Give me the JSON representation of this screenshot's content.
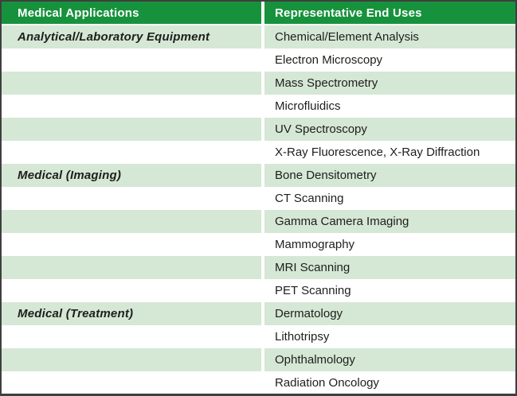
{
  "table": {
    "columns": [
      "Medical Applications",
      "Representative End Uses"
    ],
    "sections": [
      {
        "title": "Analytical/Laboratory Equipment",
        "uses": [
          "Chemical/Element Analysis",
          "Electron Microscopy",
          "Mass Spectrometry",
          "Microfluidics",
          "UV Spectroscopy",
          "X-Ray Fluorescence, X-Ray Diffraction"
        ]
      },
      {
        "title": "Medical (Imaging)",
        "uses": [
          "Bone Densitometry",
          "CT Scanning",
          "Gamma Camera Imaging",
          "Mammography",
          "MRI Scanning",
          "PET Scanning"
        ]
      },
      {
        "title": "Medical (Treatment)",
        "uses": [
          "Dermatology",
          "Lithotripsy",
          "Ophthalmology",
          "Radiation Oncology"
        ]
      }
    ],
    "colors": {
      "header_bg": "#17923C",
      "row_alt_bg": "#D5E7D5",
      "row_bg": "#FFFFFF",
      "header_text": "#FFFFFF",
      "body_text": "#1E1E1C",
      "frame_border": "#3F3F3F"
    }
  }
}
